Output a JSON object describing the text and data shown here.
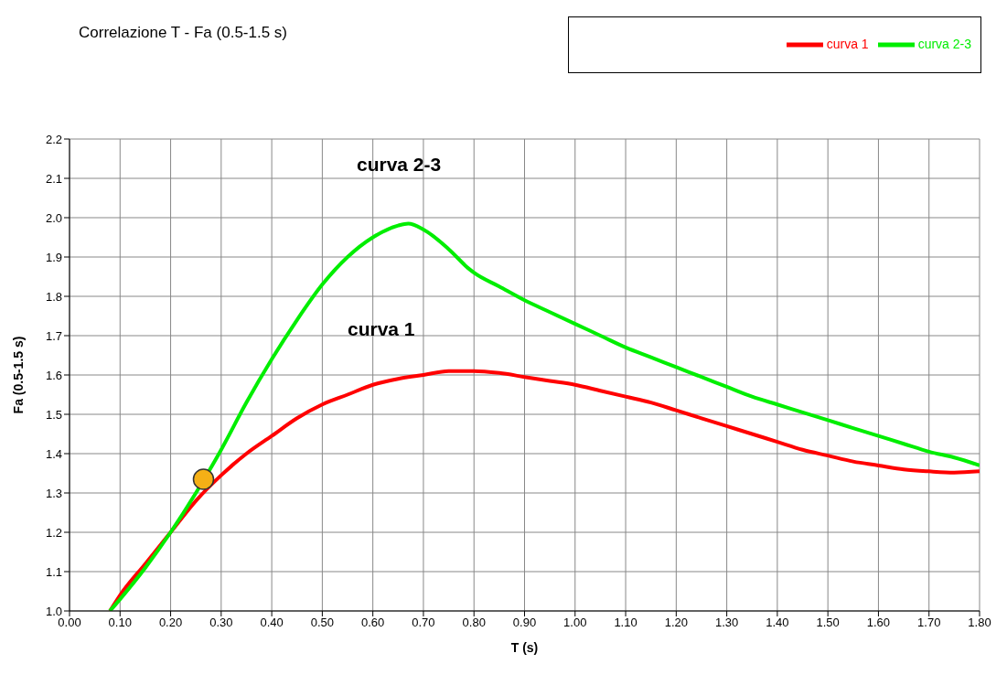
{
  "chart_data": {
    "type": "line",
    "title": "Correlazione T - Fa (0.5-1.5 s)",
    "xlabel": "T (s)",
    "ylabel": "Fa (0.5-1.5 s)",
    "series": [
      {
        "name": "curva 1",
        "color": "#ff0000",
        "x": [
          0.08,
          0.1,
          0.15,
          0.2,
          0.25,
          0.3,
          0.35,
          0.4,
          0.45,
          0.5,
          0.55,
          0.6,
          0.65,
          0.7,
          0.75,
          0.8,
          0.85,
          0.9,
          0.95,
          1.0,
          1.05,
          1.1,
          1.15,
          1.2,
          1.25,
          1.3,
          1.35,
          1.4,
          1.45,
          1.5,
          1.55,
          1.6,
          1.65,
          1.7,
          1.75,
          1.8
        ],
        "values": [
          1.0,
          1.04,
          1.12,
          1.2,
          1.28,
          1.345,
          1.4,
          1.445,
          1.49,
          1.525,
          1.55,
          1.575,
          1.59,
          1.6,
          1.61,
          1.61,
          1.605,
          1.595,
          1.585,
          1.575,
          1.56,
          1.545,
          1.53,
          1.51,
          1.49,
          1.47,
          1.45,
          1.43,
          1.41,
          1.395,
          1.38,
          1.37,
          1.36,
          1.355,
          1.352,
          1.355
        ]
      },
      {
        "name": "curva 2-3",
        "color": "#00ee00",
        "x": [
          0.08,
          0.1,
          0.15,
          0.2,
          0.25,
          0.3,
          0.35,
          0.4,
          0.45,
          0.5,
          0.55,
          0.6,
          0.65,
          0.67,
          0.7,
          0.75,
          0.79,
          0.8,
          0.85,
          0.9,
          0.95,
          1.0,
          1.05,
          1.1,
          1.15,
          1.2,
          1.25,
          1.3,
          1.35,
          1.4,
          1.45,
          1.5,
          1.55,
          1.6,
          1.65,
          1.7,
          1.75,
          1.8
        ],
        "values": [
          1.0,
          1.03,
          1.11,
          1.2,
          1.3,
          1.41,
          1.53,
          1.64,
          1.74,
          1.83,
          1.9,
          1.95,
          1.98,
          1.985,
          1.97,
          1.92,
          1.87,
          1.86,
          1.825,
          1.79,
          1.76,
          1.73,
          1.7,
          1.67,
          1.645,
          1.62,
          1.595,
          1.57,
          1.545,
          1.525,
          1.505,
          1.485,
          1.465,
          1.445,
          1.425,
          1.405,
          1.39,
          1.37
        ]
      },
      {
        "type": "scatter",
        "color": "#f5b016",
        "marker": "circle",
        "x": [
          0.265
        ],
        "values": [
          1.335
        ]
      }
    ],
    "annotations": [
      "curva 2-3",
      "curva 1"
    ],
    "xlim": [
      0,
      1.8
    ],
    "ylim": [
      1.0,
      2.2
    ],
    "xticks": [
      {
        "value": 0,
        "label": "0.00"
      },
      {
        "value": 0.1,
        "label": "0.10"
      },
      {
        "value": 0.2,
        "label": "0.20"
      },
      {
        "value": 0.3,
        "label": "0.30"
      },
      {
        "value": 0.4,
        "label": "0.40"
      },
      {
        "value": 0.5,
        "label": "0.50"
      },
      {
        "value": 0.6,
        "label": "0.60"
      },
      {
        "value": 0.7,
        "label": "0.70"
      },
      {
        "value": 0.8,
        "label": "0.80"
      },
      {
        "value": 0.9,
        "label": "0.90"
      },
      {
        "value": 1.0,
        "label": "1.00"
      },
      {
        "value": 1.1,
        "label": "1.10"
      },
      {
        "value": 1.2,
        "label": "1.20"
      },
      {
        "value": 1.3,
        "label": "1.30"
      },
      {
        "value": 1.4,
        "label": "1.40"
      },
      {
        "value": 1.5,
        "label": "1.50"
      },
      {
        "value": 1.6,
        "label": "1.60"
      },
      {
        "value": 1.7,
        "label": "1.70"
      },
      {
        "value": 1.8,
        "label": "1.80"
      }
    ],
    "yticks": [
      {
        "value": 1.0,
        "label": "1.0"
      },
      1.1,
      1.2,
      1.3,
      1.4,
      1.5,
      1.6,
      1.7,
      1.8,
      1.9,
      {
        "value": 2.0,
        "label": "2.0"
      },
      2.1,
      2.2
    ],
    "grid": true,
    "legend": "top right",
    "line_style": "solid"
  }
}
